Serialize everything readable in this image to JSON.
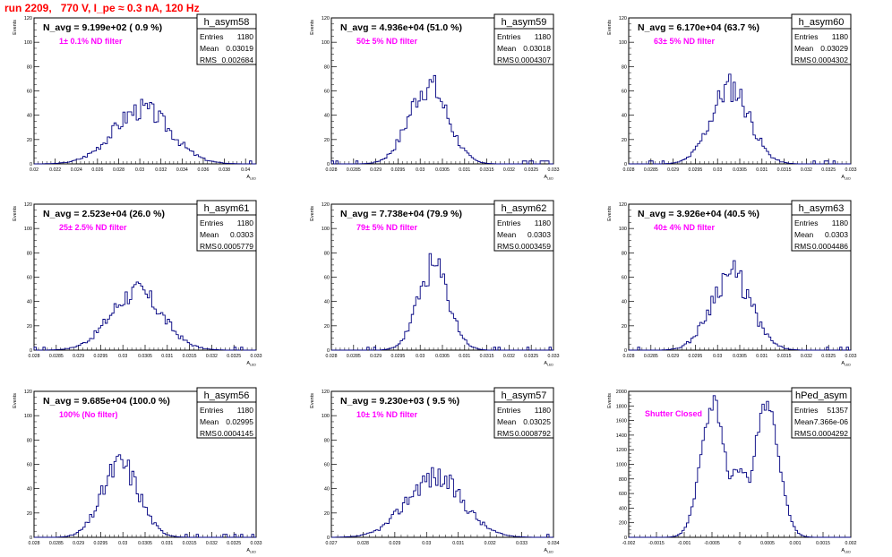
{
  "run_title": "run 2209,   770 V, I_pe ≈ 0.3 nA, 120 Hz",
  "colors": {
    "histogram": "#000080",
    "filter_label": "#ff00ff",
    "run_title": "#ff0000",
    "axis": "#000000"
  },
  "chart_data": [
    {
      "type": "bar",
      "name": "h_asym58",
      "n_avg": "N_avg = 9.199e+02 ( 0.9 %)",
      "filter": "1± 0.1% ND filter",
      "stats": {
        "Entries": "1180",
        "Mean": "0.03019",
        "RMS": "0.002684"
      },
      "ylabel": "Events",
      "xlabel": "A_LED",
      "xlim": [
        0.02,
        0.041
      ],
      "ylim": [
        0,
        120
      ],
      "xticks": [
        0.02,
        0.022,
        0.024,
        0.026,
        0.028,
        0.03,
        0.032,
        0.034,
        0.036,
        0.038,
        0.04
      ],
      "xticklabels": [
        "0.02",
        "0.022",
        "0.024",
        "0.026",
        "0.028",
        "0.03",
        "0.032",
        "0.034",
        "0.036",
        "0.038",
        "0.04"
      ],
      "yticks": [
        0,
        20,
        40,
        60,
        80,
        100,
        120
      ],
      "shape": {
        "mean": 0.03019,
        "rms": 0.002684,
        "peak": 45,
        "seed": 3
      }
    },
    {
      "type": "bar",
      "name": "h_asym59",
      "n_avg": "N_avg = 4.936e+04 (51.0 %)",
      "filter": "50± 5% ND filter",
      "stats": {
        "Entries": "1180",
        "Mean": "0.03018",
        "RMS": "0.0004307"
      },
      "ylabel": "Events",
      "xlabel": "A_LED",
      "xlim": [
        0.028,
        0.033
      ],
      "ylim": [
        0,
        120
      ],
      "xticks": [
        0.028,
        0.0285,
        0.029,
        0.0295,
        0.03,
        0.0305,
        0.031,
        0.0315,
        0.032,
        0.0325,
        0.033
      ],
      "xticklabels": [
        "0.028",
        "0.0285",
        "0.029",
        "0.0295",
        "0.03",
        "0.0305",
        "0.031",
        "0.0315",
        "0.032",
        "0.0325",
        "0.033"
      ],
      "yticks": [
        0,
        20,
        40,
        60,
        80,
        100,
        120
      ],
      "shape": {
        "mean": 0.03018,
        "rms": 0.0004307,
        "peak": 65,
        "seed": 7
      }
    },
    {
      "type": "bar",
      "name": "h_asym60",
      "n_avg": "N_avg = 6.170e+04 (63.7 %)",
      "filter": "63± 5% ND filter",
      "stats": {
        "Entries": "1180",
        "Mean": "0.03029",
        "RMS": "0.0004302"
      },
      "ylabel": "Events",
      "xlabel": "A_LED",
      "xlim": [
        0.028,
        0.033
      ],
      "ylim": [
        0,
        120
      ],
      "xticks": [
        0.028,
        0.0285,
        0.029,
        0.0295,
        0.03,
        0.0305,
        0.031,
        0.0315,
        0.032,
        0.0325,
        0.033
      ],
      "xticklabels": [
        "0.028",
        "0.0285",
        "0.029",
        "0.0295",
        "0.03",
        "0.0305",
        "0.031",
        "0.0315",
        "0.032",
        "0.0325",
        "0.033"
      ],
      "yticks": [
        0,
        20,
        40,
        60,
        80,
        100,
        120
      ],
      "shape": {
        "mean": 0.03029,
        "rms": 0.0004302,
        "peak": 63,
        "seed": 11
      }
    },
    {
      "type": "bar",
      "name": "h_asym61",
      "n_avg": "N_avg = 2.523e+04 (26.0 %)",
      "filter": "25± 2.5% ND filter",
      "stats": {
        "Entries": "1180",
        "Mean": "0.0303",
        "RMS": "0.0005779"
      },
      "ylabel": "Events",
      "xlabel": "A_LED",
      "xlim": [
        0.028,
        0.033
      ],
      "ylim": [
        0,
        120
      ],
      "xticks": [
        0.028,
        0.0285,
        0.029,
        0.0295,
        0.03,
        0.0305,
        0.031,
        0.0315,
        0.032,
        0.0325,
        0.033
      ],
      "xticklabels": [
        "0.028",
        "0.0285",
        "0.029",
        "0.0295",
        "0.03",
        "0.0305",
        "0.031",
        "0.0315",
        "0.032",
        "0.0325",
        "0.033"
      ],
      "yticks": [
        0,
        20,
        40,
        60,
        80,
        100,
        120
      ],
      "shape": {
        "mean": 0.0303,
        "rms": 0.0005779,
        "peak": 48,
        "seed": 17
      }
    },
    {
      "type": "bar",
      "name": "h_asym62",
      "n_avg": "N_avg = 7.738e+04 (79.9 %)",
      "filter": "79± 5% ND filter",
      "stats": {
        "Entries": "1180",
        "Mean": "0.0303",
        "RMS": "0.0003459"
      },
      "ylabel": "Events",
      "xlabel": "A_LED",
      "xlim": [
        0.028,
        0.033
      ],
      "ylim": [
        0,
        120
      ],
      "xticks": [
        0.028,
        0.0285,
        0.029,
        0.0295,
        0.03,
        0.0305,
        0.031,
        0.0315,
        0.032,
        0.0325,
        0.033
      ],
      "xticklabels": [
        "0.028",
        "0.0285",
        "0.029",
        "0.0295",
        "0.03",
        "0.0305",
        "0.031",
        "0.0315",
        "0.032",
        "0.0325",
        "0.033"
      ],
      "yticks": [
        0,
        20,
        40,
        60,
        80,
        100,
        120
      ],
      "shape": {
        "mean": 0.0303,
        "rms": 0.0003459,
        "peak": 68,
        "seed": 23
      }
    },
    {
      "type": "bar",
      "name": "h_asym63",
      "n_avg": "N_avg = 3.926e+04 (40.5 %)",
      "filter": "40± 4% ND filter",
      "stats": {
        "Entries": "1180",
        "Mean": "0.0303",
        "RMS": "0.0004486"
      },
      "ylabel": "Events",
      "xlabel": "A_LED",
      "xlim": [
        0.028,
        0.033
      ],
      "ylim": [
        0,
        120
      ],
      "xticks": [
        0.028,
        0.0285,
        0.029,
        0.0295,
        0.03,
        0.0305,
        0.031,
        0.0315,
        0.032,
        0.0325,
        0.033
      ],
      "xticklabels": [
        "0.028",
        "0.0285",
        "0.029",
        "0.0295",
        "0.03",
        "0.0305",
        "0.031",
        "0.0315",
        "0.032",
        "0.0325",
        "0.033"
      ],
      "yticks": [
        0,
        20,
        40,
        60,
        80,
        100,
        120
      ],
      "shape": {
        "mean": 0.0303,
        "rms": 0.0004486,
        "peak": 63,
        "seed": 29
      }
    },
    {
      "type": "bar",
      "name": "h_asym56",
      "n_avg": "N_avg = 9.685e+04 (100.0 %)",
      "filter": "100% (No filter)",
      "stats": {
        "Entries": "1180",
        "Mean": "0.02995",
        "RMS": "0.0004145"
      },
      "ylabel": "Events",
      "xlabel": "A_LED",
      "xlim": [
        0.028,
        0.033
      ],
      "ylim": [
        0,
        120
      ],
      "xticks": [
        0.028,
        0.0285,
        0.029,
        0.0295,
        0.03,
        0.0305,
        0.031,
        0.0315,
        0.032,
        0.0325,
        0.033
      ],
      "xticklabels": [
        "0.028",
        "0.0285",
        "0.029",
        "0.0295",
        "0.03",
        "0.0305",
        "0.031",
        "0.0315",
        "0.032",
        "0.0325",
        "0.033"
      ],
      "yticks": [
        0,
        20,
        40,
        60,
        80,
        100,
        120
      ],
      "shape": {
        "mean": 0.02995,
        "rms": 0.0004145,
        "peak": 60,
        "seed": 31
      }
    },
    {
      "type": "bar",
      "name": "h_asym57",
      "n_avg": "N_avg = 9.230e+03 ( 9.5 %)",
      "filter": "10± 1% ND filter",
      "stats": {
        "Entries": "1180",
        "Mean": "0.03025",
        "RMS": "0.0008792"
      },
      "ylabel": "Events",
      "xlabel": "A_LED",
      "xlim": [
        0.027,
        0.034
      ],
      "ylim": [
        0,
        120
      ],
      "xticks": [
        0.027,
        0.028,
        0.029,
        0.03,
        0.031,
        0.032,
        0.033,
        0.034
      ],
      "xticklabels": [
        "0.027",
        "0.028",
        "0.029",
        "0.03",
        "0.031",
        "0.032",
        "0.033",
        "0.034"
      ],
      "yticks": [
        0,
        20,
        40,
        60,
        80,
        100,
        120
      ],
      "shape": {
        "mean": 0.03025,
        "rms": 0.0008792,
        "peak": 50,
        "seed": 37
      }
    },
    {
      "type": "bar",
      "name": "hPed_asym",
      "n_avg": "",
      "filter": "Shutter Closed",
      "stats": {
        "Entries": "51357",
        "Mean": "-7.366e-06",
        "RMS": "0.0004292"
      },
      "ylabel": "Events",
      "xlabel": "A_LED",
      "xlim": [
        -0.002,
        0.002
      ],
      "ylim": [
        0,
        2000
      ],
      "xticks": [
        -0.002,
        -0.0015,
        -0.001,
        -0.0005,
        0,
        0.0005,
        0.001,
        0.0015,
        0.002
      ],
      "xticklabels": [
        "-0.002",
        "-0.0015",
        "-0.001",
        "-0.0005",
        "0",
        "0.0005",
        "0.001",
        "0.0015",
        "0.002"
      ],
      "yticks": [
        0,
        200,
        400,
        600,
        800,
        1000,
        1200,
        1400,
        1600,
        1800,
        2000
      ],
      "shape": {
        "bimodal": true,
        "peaks": [
          -0.00048,
          0.00048
        ],
        "width": 0.00022,
        "peak": 1850,
        "valley": 1050,
        "seed": 41
      }
    }
  ]
}
